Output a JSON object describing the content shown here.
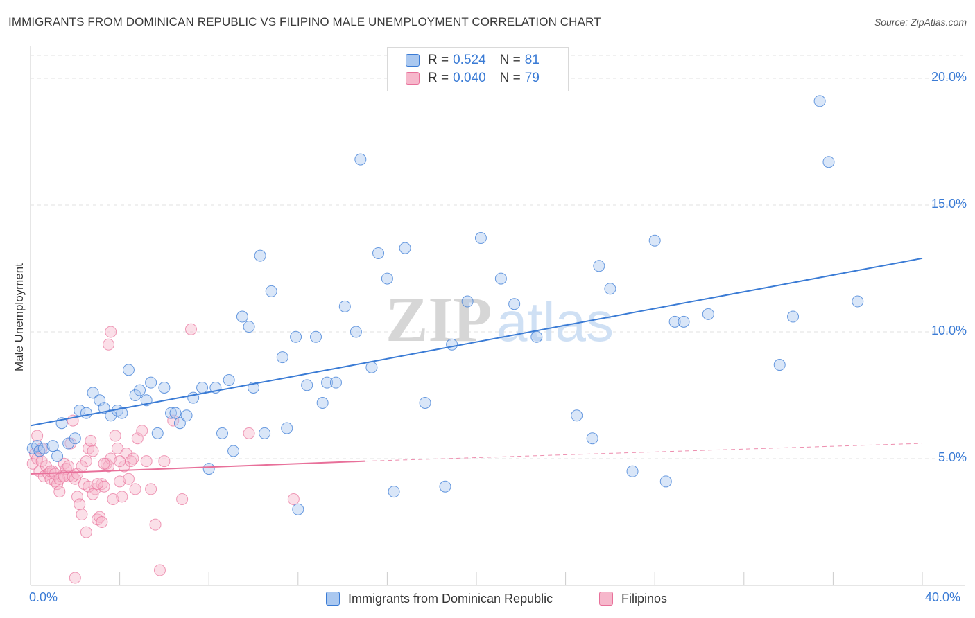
{
  "title": "IMMIGRANTS FROM DOMINICAN REPUBLIC VS FILIPINO MALE UNEMPLOYMENT CORRELATION CHART",
  "source": "Source: ZipAtlas.com",
  "watermark": {
    "zip": "ZIP",
    "atlas": "atlas"
  },
  "legend": {
    "rows": [
      {
        "r_label": "R =",
        "r_value": "0.524",
        "n_label": "N =",
        "n_value": "81"
      },
      {
        "r_label": "R =",
        "r_value": "0.040",
        "n_label": "N =",
        "n_value": "79"
      }
    ]
  },
  "bottom_legend": [
    "Immigrants from Dominican Republic",
    "Filipinos"
  ],
  "colors": {
    "blue": "#3a7bd5",
    "blue_fill": "#aac8f0",
    "pink": "#e8709a",
    "pink_fill": "#f6b7cb",
    "grid": "#e2e2e2",
    "tick_text": "#3a7bd5"
  },
  "chart_data": {
    "type": "scatter",
    "title": "IMMIGRANTS FROM DOMINICAN REPUBLIC VS FILIPINO MALE UNEMPLOYMENT CORRELATION CHART",
    "xlabel": "",
    "ylabel": "Male Unemployment",
    "xlim": [
      0,
      40
    ],
    "ylim": [
      0,
      20.9
    ],
    "x_tick_labels": [
      "0.0%",
      "40.0%"
    ],
    "y_ticks": [
      5,
      10,
      15,
      20
    ],
    "y_tick_labels": [
      "5.0%",
      "10.0%",
      "15.0%",
      "20.0%"
    ],
    "grid": "horizontal dashed",
    "legend_position": "top-center",
    "series": [
      {
        "name": "Immigrants from Dominican Republic",
        "color": "#3a7bd5",
        "trend": {
          "x": [
            0,
            40
          ],
          "y": [
            6.3,
            12.9
          ],
          "style": "solid"
        },
        "points": [
          [
            0.1,
            5.4
          ],
          [
            0.3,
            5.5
          ],
          [
            0.4,
            5.3
          ],
          [
            0.6,
            5.4
          ],
          [
            1.0,
            5.5
          ],
          [
            1.2,
            5.1
          ],
          [
            1.4,
            6.4
          ],
          [
            1.7,
            5.6
          ],
          [
            2.0,
            5.8
          ],
          [
            2.2,
            6.9
          ],
          [
            2.5,
            6.8
          ],
          [
            2.8,
            7.6
          ],
          [
            3.1,
            7.3
          ],
          [
            3.3,
            7.0
          ],
          [
            3.6,
            6.7
          ],
          [
            3.9,
            6.9
          ],
          [
            4.1,
            6.8
          ],
          [
            4.4,
            8.5
          ],
          [
            4.7,
            7.5
          ],
          [
            4.9,
            7.7
          ],
          [
            5.2,
            7.3
          ],
          [
            5.4,
            8.0
          ],
          [
            5.7,
            6.0
          ],
          [
            6.0,
            7.8
          ],
          [
            6.3,
            6.8
          ],
          [
            6.5,
            6.8
          ],
          [
            6.7,
            6.4
          ],
          [
            7.0,
            6.7
          ],
          [
            7.3,
            7.4
          ],
          [
            7.7,
            7.8
          ],
          [
            8.0,
            4.6
          ],
          [
            8.3,
            7.8
          ],
          [
            8.6,
            6.0
          ],
          [
            8.9,
            8.1
          ],
          [
            9.1,
            5.3
          ],
          [
            9.5,
            10.6
          ],
          [
            9.8,
            10.2
          ],
          [
            10.0,
            7.8
          ],
          [
            10.3,
            13.0
          ],
          [
            10.5,
            6.0
          ],
          [
            10.8,
            11.6
          ],
          [
            11.3,
            9.0
          ],
          [
            11.5,
            6.2
          ],
          [
            11.9,
            9.8
          ],
          [
            12.0,
            3.0
          ],
          [
            12.4,
            7.9
          ],
          [
            12.8,
            9.8
          ],
          [
            13.1,
            7.2
          ],
          [
            13.3,
            8.0
          ],
          [
            13.7,
            8.0
          ],
          [
            14.1,
            11.0
          ],
          [
            14.6,
            10.0
          ],
          [
            14.8,
            16.8
          ],
          [
            15.3,
            8.6
          ],
          [
            15.6,
            13.1
          ],
          [
            16.0,
            12.1
          ],
          [
            16.3,
            3.7
          ],
          [
            16.8,
            13.3
          ],
          [
            17.7,
            7.2
          ],
          [
            18.6,
            3.9
          ],
          [
            18.9,
            9.5
          ],
          [
            19.6,
            11.2
          ],
          [
            20.2,
            13.7
          ],
          [
            21.1,
            12.1
          ],
          [
            21.7,
            11.1
          ],
          [
            22.7,
            9.8
          ],
          [
            24.5,
            6.7
          ],
          [
            25.2,
            5.8
          ],
          [
            25.5,
            12.6
          ],
          [
            26.0,
            11.7
          ],
          [
            27.0,
            4.5
          ],
          [
            28.0,
            13.6
          ],
          [
            28.5,
            4.1
          ],
          [
            28.9,
            10.4
          ],
          [
            29.3,
            10.4
          ],
          [
            30.4,
            10.7
          ],
          [
            33.6,
            8.7
          ],
          [
            34.2,
            10.6
          ],
          [
            35.4,
            19.1
          ],
          [
            35.8,
            16.7
          ],
          [
            37.1,
            11.2
          ]
        ]
      },
      {
        "name": "Filipinos",
        "color": "#e8709a",
        "trend": {
          "x": [
            0,
            15
          ],
          "y": [
            4.4,
            4.9
          ],
          "style": "solid",
          "extension": {
            "x": [
              15,
              40
            ],
            "y": [
              4.9,
              5.6
            ],
            "style": "dashed"
          }
        },
        "points": [
          [
            0.1,
            4.8
          ],
          [
            0.2,
            5.2
          ],
          [
            0.3,
            5.0
          ],
          [
            0.4,
            4.5
          ],
          [
            0.5,
            4.9
          ],
          [
            0.6,
            4.3
          ],
          [
            0.7,
            4.7
          ],
          [
            0.8,
            4.4
          ],
          [
            0.9,
            4.2
          ],
          [
            1.0,
            4.5
          ],
          [
            1.1,
            4.1
          ],
          [
            1.2,
            4.0
          ],
          [
            1.3,
            3.7
          ],
          [
            1.4,
            4.3
          ],
          [
            1.5,
            4.8
          ],
          [
            1.6,
            4.6
          ],
          [
            1.7,
            4.3
          ],
          [
            1.8,
            5.6
          ],
          [
            1.9,
            6.5
          ],
          [
            2.0,
            4.2
          ],
          [
            2.1,
            3.5
          ],
          [
            2.2,
            3.2
          ],
          [
            2.3,
            2.8
          ],
          [
            2.4,
            4.0
          ],
          [
            2.5,
            4.9
          ],
          [
            2.6,
            5.4
          ],
          [
            2.7,
            5.7
          ],
          [
            2.8,
            5.3
          ],
          [
            2.9,
            3.8
          ],
          [
            3.0,
            2.6
          ],
          [
            3.1,
            2.7
          ],
          [
            3.2,
            4.0
          ],
          [
            3.3,
            3.9
          ],
          [
            3.4,
            4.8
          ],
          [
            3.5,
            4.7
          ],
          [
            3.6,
            5.0
          ],
          [
            3.7,
            3.4
          ],
          [
            3.8,
            5.9
          ],
          [
            3.9,
            5.4
          ],
          [
            4.0,
            4.1
          ],
          [
            4.1,
            3.5
          ],
          [
            4.2,
            4.7
          ],
          [
            4.3,
            5.2
          ],
          [
            4.4,
            4.2
          ],
          [
            4.5,
            4.9
          ],
          [
            4.6,
            5.0
          ],
          [
            4.7,
            3.8
          ],
          [
            4.8,
            5.8
          ],
          [
            5.0,
            6.1
          ],
          [
            5.2,
            4.9
          ],
          [
            5.4,
            3.8
          ],
          [
            5.6,
            2.4
          ],
          [
            5.8,
            0.6
          ],
          [
            6.0,
            4.9
          ],
          [
            6.4,
            6.5
          ],
          [
            6.8,
            3.4
          ],
          [
            7.2,
            10.1
          ],
          [
            9.8,
            6.0
          ],
          [
            11.8,
            3.4
          ],
          [
            3.5,
            9.5
          ],
          [
            3.6,
            10.0
          ],
          [
            2.0,
            0.3
          ],
          [
            2.5,
            2.1
          ],
          [
            3.2,
            2.5
          ],
          [
            0.3,
            5.9
          ],
          [
            0.5,
            5.4
          ],
          [
            0.9,
            4.5
          ],
          [
            1.1,
            4.4
          ],
          [
            1.3,
            4.2
          ],
          [
            1.5,
            4.3
          ],
          [
            1.7,
            4.7
          ],
          [
            1.9,
            4.3
          ],
          [
            2.1,
            4.4
          ],
          [
            2.3,
            4.7
          ],
          [
            2.6,
            3.9
          ],
          [
            2.8,
            3.6
          ],
          [
            3.0,
            4.0
          ],
          [
            3.3,
            4.8
          ],
          [
            4.0,
            4.9
          ]
        ]
      }
    ]
  }
}
